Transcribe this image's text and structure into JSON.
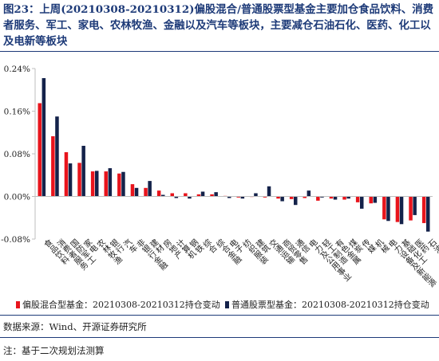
{
  "figure": {
    "title": "图23：上周(20210308-20210312)偏股混合/普通股票型基金主要加仓食品饮料、消费者服务、军工、家电、农林牧渔、金融以及汽车等板块，主要减仓石油石化、医药、化工以及电新等板块",
    "source": "数据来源：Wind、开源证券研究所",
    "note": "注：基于二次规划法测算"
  },
  "colors": {
    "series1": "#e8141c",
    "series2": "#14224a",
    "title": "#1d3a78",
    "axis": "#bfbfbf"
  },
  "chart_data": {
    "type": "bar",
    "categories": [
      "食品饮料",
      "消费者服务",
      "国防军工",
      "家电",
      "农林牧渔",
      "银行",
      "汽车",
      "非银行金融",
      "建材",
      "房地产",
      "计算机",
      "钢铁",
      "综合",
      "综合金融",
      "电子",
      "纺织服装",
      "建筑",
      "交通运输",
      "商贸零售",
      "通信",
      "电力及公用事业",
      "轻工制造",
      "有色金属",
      "煤炭",
      "传媒",
      "机械",
      "电力设备及新能源",
      "基础化工",
      "医药",
      "石油石化"
    ],
    "series": [
      {
        "name": "偏股混合型基金：20210308-20210312持仓变动",
        "values": [
          0.175,
          0.113,
          0.083,
          0.063,
          0.047,
          0.047,
          0.043,
          0.023,
          0.016,
          0.011,
          0.006,
          0.006,
          0.004,
          0.004,
          0.001,
          -0.002,
          -0.001,
          -0.002,
          -0.004,
          -0.005,
          -0.003,
          -0.008,
          -0.004,
          -0.006,
          -0.011,
          -0.013,
          -0.043,
          -0.048,
          -0.045,
          -0.05
        ]
      },
      {
        "name": "普通股票型基金：20210308-20210312持仓变动",
        "values": [
          0.222,
          0.15,
          0.062,
          0.095,
          0.048,
          0.053,
          0.046,
          0.016,
          0.029,
          0.003,
          -0.003,
          -0.004,
          0.009,
          0.008,
          -0.003,
          -0.004,
          0.006,
          0.019,
          -0.009,
          -0.016,
          0.011,
          -0.002,
          -0.006,
          -0.004,
          -0.023,
          -0.012,
          -0.046,
          -0.052,
          -0.035,
          -0.066
        ]
      }
    ],
    "yticks": [
      "0.24%",
      "0.16%",
      "0.08%",
      "0.00%",
      "-0.08%"
    ],
    "ylim": [
      -0.08,
      0.24
    ],
    "grid": false,
    "legend": "bottom"
  }
}
